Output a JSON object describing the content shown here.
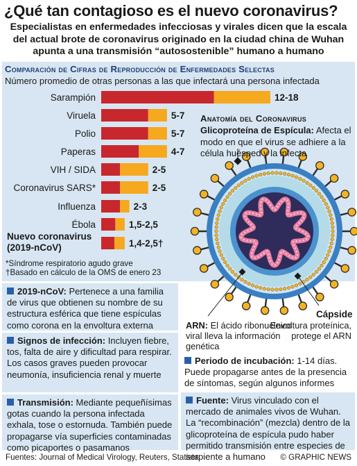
{
  "title": "¿Qué tan contagioso es el nuevo coronavirus?",
  "subtitle": "Especialistas en enfermedades infecciosas y virales dicen que la escala del actual brote de coronavirus originado en la ciudad china de Wuhan apunta a una transmisión “autosostenible” humano a humano",
  "chart_data": {
    "type": "bar",
    "title": "Comparación de Cifras de Reproducción de Enfermedades Selectas",
    "subtitle": "Número promedio de otras personas a las que infectará una persona infectada",
    "categories": [
      "Sarampión",
      "Viruela",
      "Polio",
      "Paperas",
      "VIH / SIDA",
      "Coronavirus SARS*",
      "Influenza",
      "Ébola",
      "Nuevo coronavirus (2019-nCoV)"
    ],
    "category_lines": [
      [
        "Sarampión"
      ],
      [
        "Viruela"
      ],
      [
        "Polio"
      ],
      [
        "Paperas"
      ],
      [
        "VIH / SIDA"
      ],
      [
        "Coronavirus SARS*"
      ],
      [
        "Influenza"
      ],
      [
        "Ébola"
      ],
      [
        "Nuevo coronavirus",
        "(2019-nCoV)"
      ]
    ],
    "value_labels": [
      "12-18",
      "5-7",
      "5-7",
      "4-7",
      "2-5",
      "2-5",
      "2-3",
      "1,5-2,5",
      "1,4-2,5†"
    ],
    "series": [
      {
        "values": [
          12,
          5,
          5,
          4,
          2,
          2,
          2,
          1.5,
          1.4
        ]
      },
      {
        "values": [
          18,
          7,
          7,
          7,
          5,
          5,
          3,
          2.5,
          2.5
        ]
      }
    ],
    "colors": {
      "low": "#c8272d",
      "high": "#f6a81f"
    },
    "orientation": "horizontal",
    "xlim": [
      0,
      18
    ],
    "grid": false
  },
  "footnotes": [
    "*Síndrome respiratorio agudo grave",
    "†Basado en cálculo de la OMS de enero 23"
  ],
  "anatomy": {
    "title": "Anatomía del Coronavirus",
    "glyco_label": "Glicoproteína de Espícula:",
    "glyco_text": "Afecta el modo en que el virus se adhiere a la célula huésped y la infecta",
    "capsid_label": "Cápside",
    "capsid_text": "Envoltura proteínica, protege el ARN",
    "rna_label": "ARN:",
    "rna_text": "El ácido ribonucleico viral lleva la información genética"
  },
  "info_boxes": {
    "ncov": {
      "label": "2019-nCoV:",
      "text": "Pertenece a una familia de virus que obtienen su nombre de su estructura esférica que tiene espículas como corona en la envoltura externa"
    },
    "signs": {
      "label": "Signos de infección:",
      "text": "Incluyen fiebre, tos, falta de aire y dificultad para respirar. Los casos graves pueden provocar neumonía, insuficiencia renal y muerte"
    },
    "transmission": {
      "label": "Transmisión:",
      "text": "Mediante pequeñísimas gotas cuando la persona infectada exhala, tose o estornuda. También puede propagarse vía superficies contaminadas como picaportes o pasamanos"
    },
    "incubation": {
      "label": "Periodo de incubación:",
      "text": "1-14 días. Puede propagarse antes de la presencia de síntomas, según algunos informes"
    },
    "source": {
      "label": "Fuente:",
      "text": "Virus vinculado con el mercado de animales vivos de Wuhan. La “recombi­nación” (mezcla) dentro de la glicoproteína de espícula pudo haber permitido transmi­sión entre especies de serpiente a humano"
    }
  },
  "sources": "Fuentes: Journal of Medical Virology, Reuters, Statista",
  "credit": "© GRAPHIC NEWS"
}
